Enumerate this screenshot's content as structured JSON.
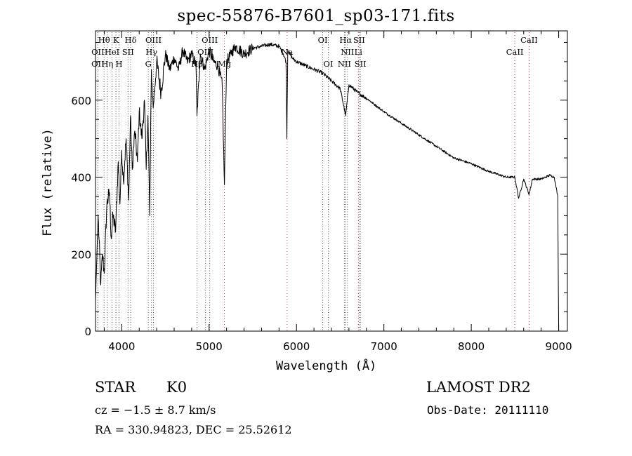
{
  "chart_data": {
    "type": "line",
    "title": "spec-55876-B7601_sp03-171.fits",
    "xlabel": "Wavelength (Å)",
    "ylabel": "Flux (relative)",
    "xlim": [
      3700,
      9100
    ],
    "ylim": [
      0,
      780
    ],
    "xticks": [
      4000,
      5000,
      6000,
      7000,
      8000,
      9000
    ],
    "yticks": [
      0,
      200,
      400,
      600
    ],
    "x_minor_step": 200,
    "y_minor_step": 50,
    "spectrum": {
      "x": [
        3700,
        3730,
        3760,
        3780,
        3800,
        3830,
        3860,
        3880,
        3900,
        3930,
        3960,
        3980,
        4000,
        4020,
        4050,
        4080,
        4100,
        4120,
        4150,
        4180,
        4200,
        4230,
        4260,
        4280,
        4300,
        4320,
        4340,
        4360,
        4400,
        4450,
        4500,
        4550,
        4600,
        4650,
        4700,
        4750,
        4800,
        4850,
        4861,
        4900,
        4950,
        5000,
        5050,
        5100,
        5150,
        5175,
        5200,
        5250,
        5300,
        5400,
        5500,
        5600,
        5700,
        5800,
        5850,
        5880,
        5890,
        5900,
        5950,
        6000,
        6100,
        6200,
        6300,
        6400,
        6500,
        6563,
        6600,
        6700,
        6800,
        7000,
        7200,
        7400,
        7600,
        7800,
        8000,
        8200,
        8400,
        8498,
        8542,
        8600,
        8662,
        8700,
        8800,
        8900,
        8950,
        8990,
        9000
      ],
      "y": [
        80,
        300,
        120,
        200,
        150,
        330,
        360,
        240,
        300,
        260,
        440,
        330,
        470,
        390,
        500,
        340,
        560,
        420,
        520,
        440,
        570,
        500,
        600,
        420,
        560,
        300,
        680,
        580,
        700,
        620,
        720,
        680,
        710,
        680,
        730,
        700,
        720,
        690,
        560,
        720,
        680,
        730,
        700,
        690,
        640,
        380,
        700,
        720,
        740,
        720,
        735,
        740,
        745,
        740,
        720,
        700,
        500,
        730,
        710,
        700,
        690,
        680,
        670,
        650,
        630,
        560,
        640,
        620,
        605,
        570,
        540,
        510,
        480,
        450,
        435,
        415,
        400,
        400,
        345,
        395,
        355,
        395,
        395,
        405,
        400,
        350,
        0
      ]
    },
    "lines": [
      {
        "name": "Hθ",
        "x": 3798,
        "row": 1,
        "ls": "dotted"
      },
      {
        "name": "K",
        "x": 3934,
        "row": 1,
        "ls": "dotted"
      },
      {
        "name": "Hδ",
        "x": 4102,
        "row": 1,
        "ls": "dotted"
      },
      {
        "name": "OII",
        "x": 3727,
        "row": 2,
        "ls": "dotted"
      },
      {
        "name": "HeI",
        "x": 3889,
        "row": 2,
        "ls": "dotted"
      },
      {
        "name": "SII",
        "x": 4072,
        "row": 2,
        "ls": "dotted"
      },
      {
        "name": "OII",
        "x": 3727,
        "row": 3,
        "ls": "dotted"
      },
      {
        "name": "Hη",
        "x": 3835,
        "row": 3,
        "ls": "dotted"
      },
      {
        "name": "H",
        "x": 3969,
        "row": 3,
        "ls": "dotted"
      },
      {
        "name": "OIII",
        "x": 4363,
        "row": 1,
        "ls": "dotted"
      },
      {
        "name": "Hγ",
        "x": 4340,
        "row": 2,
        "ls": "dotted"
      },
      {
        "name": "G",
        "x": 4304,
        "row": 3,
        "ls": "dotted"
      },
      {
        "name": "OIII",
        "x": 5007,
        "row": 1,
        "ls": "dotted"
      },
      {
        "name": "OIII",
        "x": 4959,
        "row": 2,
        "ls": "dotted"
      },
      {
        "name": "Hβ",
        "x": 4861,
        "row": 3,
        "ls": "dotted"
      },
      {
        "name": "Mg",
        "x": 5175,
        "row": 3,
        "ls": "dashed"
      },
      {
        "name": "Na",
        "x": 5893,
        "row": 2,
        "ls": "dashed"
      },
      {
        "name": "OI",
        "x": 6300,
        "row": 1,
        "ls": "dotted"
      },
      {
        "name": "OI",
        "x": 6364,
        "row": 3,
        "ls": "dotted"
      },
      {
        "name": "Hα",
        "x": 6563,
        "row": 1,
        "ls": "dotted"
      },
      {
        "name": "SII",
        "x": 6716,
        "row": 1,
        "ls": "dotted"
      },
      {
        "name": "NII",
        "x": 6583,
        "row": 2,
        "ls": "dotted"
      },
      {
        "name": "Li",
        "x": 6708,
        "row": 2,
        "ls": "dashed"
      },
      {
        "name": "NII",
        "x": 6548,
        "row": 3,
        "ls": "dotted"
      },
      {
        "name": "SII",
        "x": 6731,
        "row": 3,
        "ls": "dotted"
      },
      {
        "name": "CaII",
        "x": 8662,
        "row": 1,
        "ls": "dashed"
      },
      {
        "name": "CaII",
        "x": 8498,
        "row": 2,
        "ls": "dashed"
      }
    ]
  },
  "info": {
    "object_class": "STAR",
    "subclass": "K0",
    "survey": "LAMOST DR2",
    "redshift": "cz = −1.5 ± 8.7 km/s",
    "obs_date": "Obs-Date: 20111110",
    "coords": "RA = 330.94823, DEC =  25.52612"
  },
  "colors": {
    "spectrum": "#000000",
    "emission_line": "#555555",
    "absorption_line": "#cc3333"
  }
}
